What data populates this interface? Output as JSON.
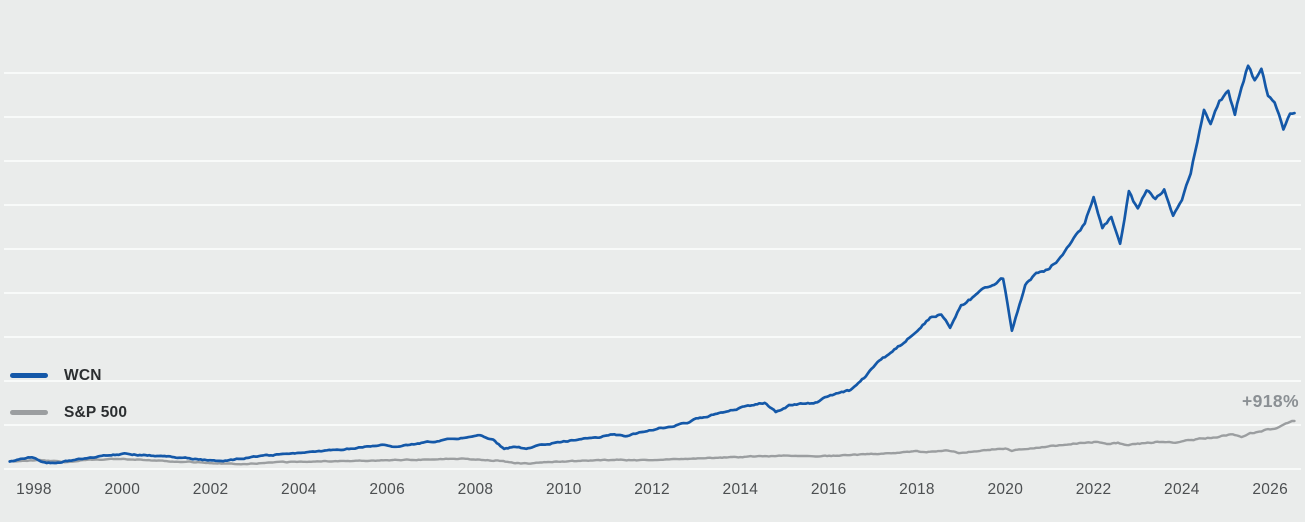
{
  "colors": {
    "background": "#eaeceb",
    "gridline": "#f8faf9",
    "axis_text": "#4c4f51",
    "legend_text": "#2b2e30",
    "gain_text": "#8b9094",
    "wcn_blue": "#1458a8",
    "sp500_gray": "#9b9ea0"
  },
  "legend": {
    "items": [
      {
        "label": "WCN",
        "swatch_color": "#1458a8"
      },
      {
        "label": "S&P 500",
        "swatch_color": "#9b9ea0"
      }
    ]
  },
  "chart_data": {
    "type": "line",
    "title": "",
    "xlabel": "",
    "ylabel": "",
    "x_axis": {
      "tick_labels": [
        "1998",
        "2000",
        "2002",
        "2004",
        "2006",
        "2008",
        "2010",
        "2012",
        "2014",
        "2016",
        "2018",
        "2020",
        "2022",
        "2024",
        "2026"
      ],
      "range_years": [
        1997.4,
        2026.6
      ]
    },
    "y_axis": {
      "unit": "percent total return since start",
      "tick_labels": [],
      "gridlines": "10 evenly spaced unlabeled horizontal gridlines",
      "grid": true,
      "approx_range_percent": [
        -170,
        8810
      ]
    },
    "legend_position": "middle-left",
    "annotations": [
      {
        "text": "+918%",
        "attached_to": "S&P 500",
        "position": "end-of-line top-right"
      }
    ],
    "series": [
      {
        "name": "WCN",
        "color": "#1458a8",
        "end_label": null,
        "points_year_percent": [
          [
            1997.45,
            0
          ],
          [
            1997.7,
            55
          ],
          [
            1997.95,
            105
          ],
          [
            1998.2,
            -20
          ],
          [
            1998.5,
            -50
          ],
          [
            1998.8,
            20
          ],
          [
            1999.1,
            55
          ],
          [
            1999.45,
            110
          ],
          [
            1999.75,
            150
          ],
          [
            2000.05,
            170
          ],
          [
            2000.35,
            150
          ],
          [
            2000.7,
            135
          ],
          [
            2001.0,
            120
          ],
          [
            2001.3,
            95
          ],
          [
            2001.6,
            60
          ],
          [
            2001.9,
            35
          ],
          [
            2002.2,
            5
          ],
          [
            2002.5,
            40
          ],
          [
            2002.8,
            80
          ],
          [
            2003.1,
            120
          ],
          [
            2003.5,
            155
          ],
          [
            2004.0,
            195
          ],
          [
            2004.5,
            230
          ],
          [
            2005.0,
            275
          ],
          [
            2005.4,
            320
          ],
          [
            2005.8,
            375
          ],
          [
            2006.2,
            345
          ],
          [
            2006.6,
            400
          ],
          [
            2007.0,
            445
          ],
          [
            2007.4,
            500
          ],
          [
            2007.8,
            545
          ],
          [
            2008.1,
            590
          ],
          [
            2008.4,
            480
          ],
          [
            2008.65,
            285
          ],
          [
            2008.9,
            330
          ],
          [
            2009.15,
            300
          ],
          [
            2009.5,
            370
          ],
          [
            2010.0,
            455
          ],
          [
            2010.4,
            520
          ],
          [
            2010.8,
            560
          ],
          [
            2011.1,
            625
          ],
          [
            2011.4,
            580
          ],
          [
            2011.8,
            680
          ],
          [
            2012.2,
            760
          ],
          [
            2012.5,
            800
          ],
          [
            2012.8,
            880
          ],
          [
            2013.0,
            965
          ],
          [
            2013.3,
            1040
          ],
          [
            2013.6,
            1110
          ],
          [
            2014.0,
            1210
          ],
          [
            2014.3,
            1290
          ],
          [
            2014.55,
            1330
          ],
          [
            2014.8,
            1120
          ],
          [
            2015.1,
            1270
          ],
          [
            2015.4,
            1310
          ],
          [
            2015.7,
            1330
          ],
          [
            2016.0,
            1490
          ],
          [
            2016.25,
            1560
          ],
          [
            2016.5,
            1620
          ],
          [
            2016.8,
            1900
          ],
          [
            2017.1,
            2250
          ],
          [
            2017.4,
            2450
          ],
          [
            2017.7,
            2700
          ],
          [
            2018.0,
            2950
          ],
          [
            2018.3,
            3250
          ],
          [
            2018.55,
            3350
          ],
          [
            2018.75,
            3030
          ],
          [
            2019.0,
            3550
          ],
          [
            2019.25,
            3700
          ],
          [
            2019.5,
            3950
          ],
          [
            2019.75,
            4050
          ],
          [
            2019.95,
            4160
          ],
          [
            2020.15,
            2980
          ],
          [
            2020.45,
            4000
          ],
          [
            2020.7,
            4250
          ],
          [
            2021.0,
            4390
          ],
          [
            2021.2,
            4570
          ],
          [
            2021.4,
            4850
          ],
          [
            2021.6,
            5140
          ],
          [
            2021.8,
            5400
          ],
          [
            2022.0,
            6000
          ],
          [
            2022.2,
            5300
          ],
          [
            2022.4,
            5550
          ],
          [
            2022.6,
            4950
          ],
          [
            2022.8,
            6100
          ],
          [
            2023.0,
            5700
          ],
          [
            2023.2,
            6150
          ],
          [
            2023.4,
            5950
          ],
          [
            2023.6,
            6150
          ],
          [
            2023.8,
            5590
          ],
          [
            2024.0,
            5930
          ],
          [
            2024.2,
            6540
          ],
          [
            2024.35,
            7290
          ],
          [
            2024.5,
            7970
          ],
          [
            2024.65,
            7700
          ],
          [
            2024.85,
            8200
          ],
          [
            2025.05,
            8380
          ],
          [
            2025.2,
            7900
          ],
          [
            2025.35,
            8490
          ],
          [
            2025.5,
            9010
          ],
          [
            2025.65,
            8650
          ],
          [
            2025.8,
            8880
          ],
          [
            2025.95,
            8310
          ],
          [
            2026.1,
            8130
          ],
          [
            2026.3,
            7550
          ],
          [
            2026.45,
            7925
          ],
          [
            2026.55,
            7900
          ]
        ]
      },
      {
        "name": "S&P 500",
        "color": "#9b9ea0",
        "end_label": "+918%",
        "points_year_percent": [
          [
            1997.45,
            0
          ],
          [
            1997.8,
            15
          ],
          [
            1998.1,
            30
          ],
          [
            1998.45,
            10
          ],
          [
            1998.7,
            -15
          ],
          [
            1999.0,
            20
          ],
          [
            1999.4,
            40
          ],
          [
            1999.8,
            55
          ],
          [
            2000.2,
            50
          ],
          [
            2000.6,
            40
          ],
          [
            2001.0,
            10
          ],
          [
            2001.4,
            -10
          ],
          [
            2001.8,
            -20
          ],
          [
            2002.2,
            -40
          ],
          [
            2002.6,
            -55
          ],
          [
            2003.0,
            -45
          ],
          [
            2003.5,
            -20
          ],
          [
            2004.0,
            -5
          ],
          [
            2004.6,
            5
          ],
          [
            2005.2,
            15
          ],
          [
            2006.0,
            30
          ],
          [
            2006.8,
            45
          ],
          [
            2007.6,
            65
          ],
          [
            2008.0,
            50
          ],
          [
            2008.5,
            20
          ],
          [
            2008.9,
            -35
          ],
          [
            2009.2,
            -50
          ],
          [
            2009.6,
            -15
          ],
          [
            2010.1,
            5
          ],
          [
            2010.6,
            20
          ],
          [
            2011.2,
            40
          ],
          [
            2011.6,
            25
          ],
          [
            2012.2,
            45
          ],
          [
            2012.8,
            60
          ],
          [
            2013.4,
            85
          ],
          [
            2014.0,
            105
          ],
          [
            2014.6,
            120
          ],
          [
            2015.2,
            135
          ],
          [
            2015.7,
            125
          ],
          [
            2016.1,
            130
          ],
          [
            2016.6,
            150
          ],
          [
            2017.1,
            175
          ],
          [
            2017.6,
            200
          ],
          [
            2018.0,
            230
          ],
          [
            2018.3,
            215
          ],
          [
            2018.7,
            240
          ],
          [
            2018.95,
            195
          ],
          [
            2019.3,
            240
          ],
          [
            2019.7,
            270
          ],
          [
            2020.0,
            295
          ],
          [
            2020.15,
            235
          ],
          [
            2020.4,
            280
          ],
          [
            2020.7,
            320
          ],
          [
            2021.0,
            350
          ],
          [
            2021.4,
            390
          ],
          [
            2021.8,
            430
          ],
          [
            2022.05,
            450
          ],
          [
            2022.3,
            400
          ],
          [
            2022.55,
            420
          ],
          [
            2022.75,
            370
          ],
          [
            2023.0,
            400
          ],
          [
            2023.4,
            440
          ],
          [
            2023.8,
            425
          ],
          [
            2024.0,
            460
          ],
          [
            2024.4,
            510
          ],
          [
            2024.8,
            560
          ],
          [
            2025.0,
            590
          ],
          [
            2025.15,
            620
          ],
          [
            2025.35,
            560
          ],
          [
            2025.55,
            640
          ],
          [
            2025.8,
            690
          ],
          [
            2026.0,
            730
          ],
          [
            2026.2,
            790
          ],
          [
            2026.35,
            850
          ],
          [
            2026.55,
            918
          ]
        ]
      }
    ]
  }
}
